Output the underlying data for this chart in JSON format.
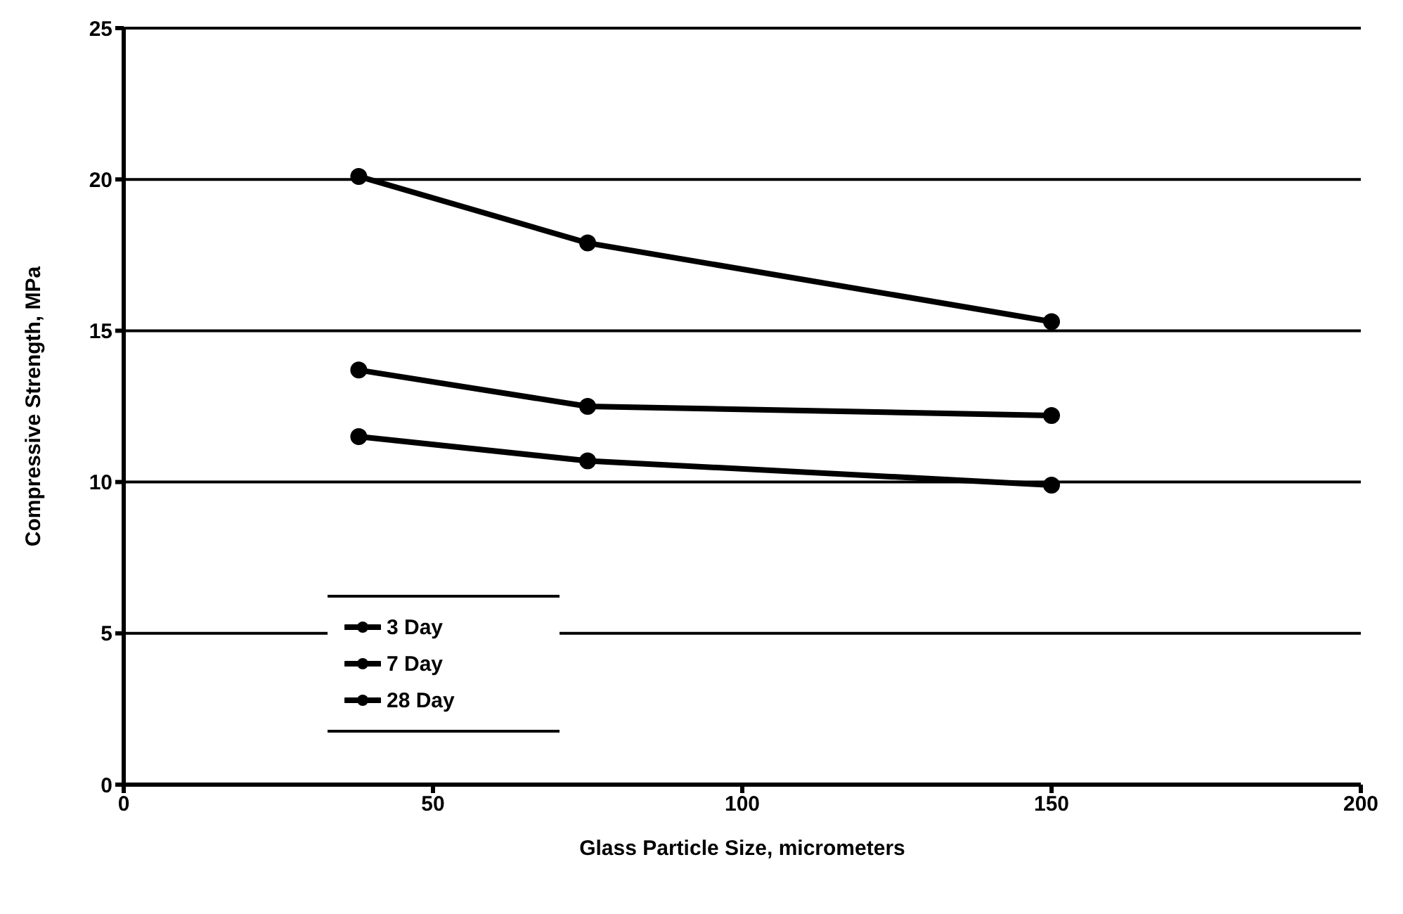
{
  "chart_data": {
    "type": "line",
    "xlabel": "Glass Particle Size, micrometers",
    "ylabel": "Compressive Strength, MPa",
    "xlim": [
      0,
      200
    ],
    "xticks": [
      0,
      50,
      100,
      150,
      200
    ],
    "ylim": [
      0,
      25
    ],
    "yticks": [
      0,
      5,
      10,
      15,
      20,
      25
    ],
    "grid": "y",
    "legend": "bottom left",
    "marker": "circle",
    "line_style": "solid",
    "series": [
      {
        "name": "3 Day",
        "color": "#000000",
        "x": [
          38,
          75,
          150
        ],
        "values": [
          11.5,
          10.7,
          9.9
        ]
      },
      {
        "name": "7 Day",
        "color": "#000000",
        "x": [
          38,
          75,
          150
        ],
        "values": [
          13.7,
          12.5,
          12.2
        ]
      },
      {
        "name": "28 Day",
        "color": "#000000",
        "x": [
          38,
          75,
          150
        ],
        "values": [
          20.1,
          17.9,
          15.3
        ]
      }
    ]
  }
}
